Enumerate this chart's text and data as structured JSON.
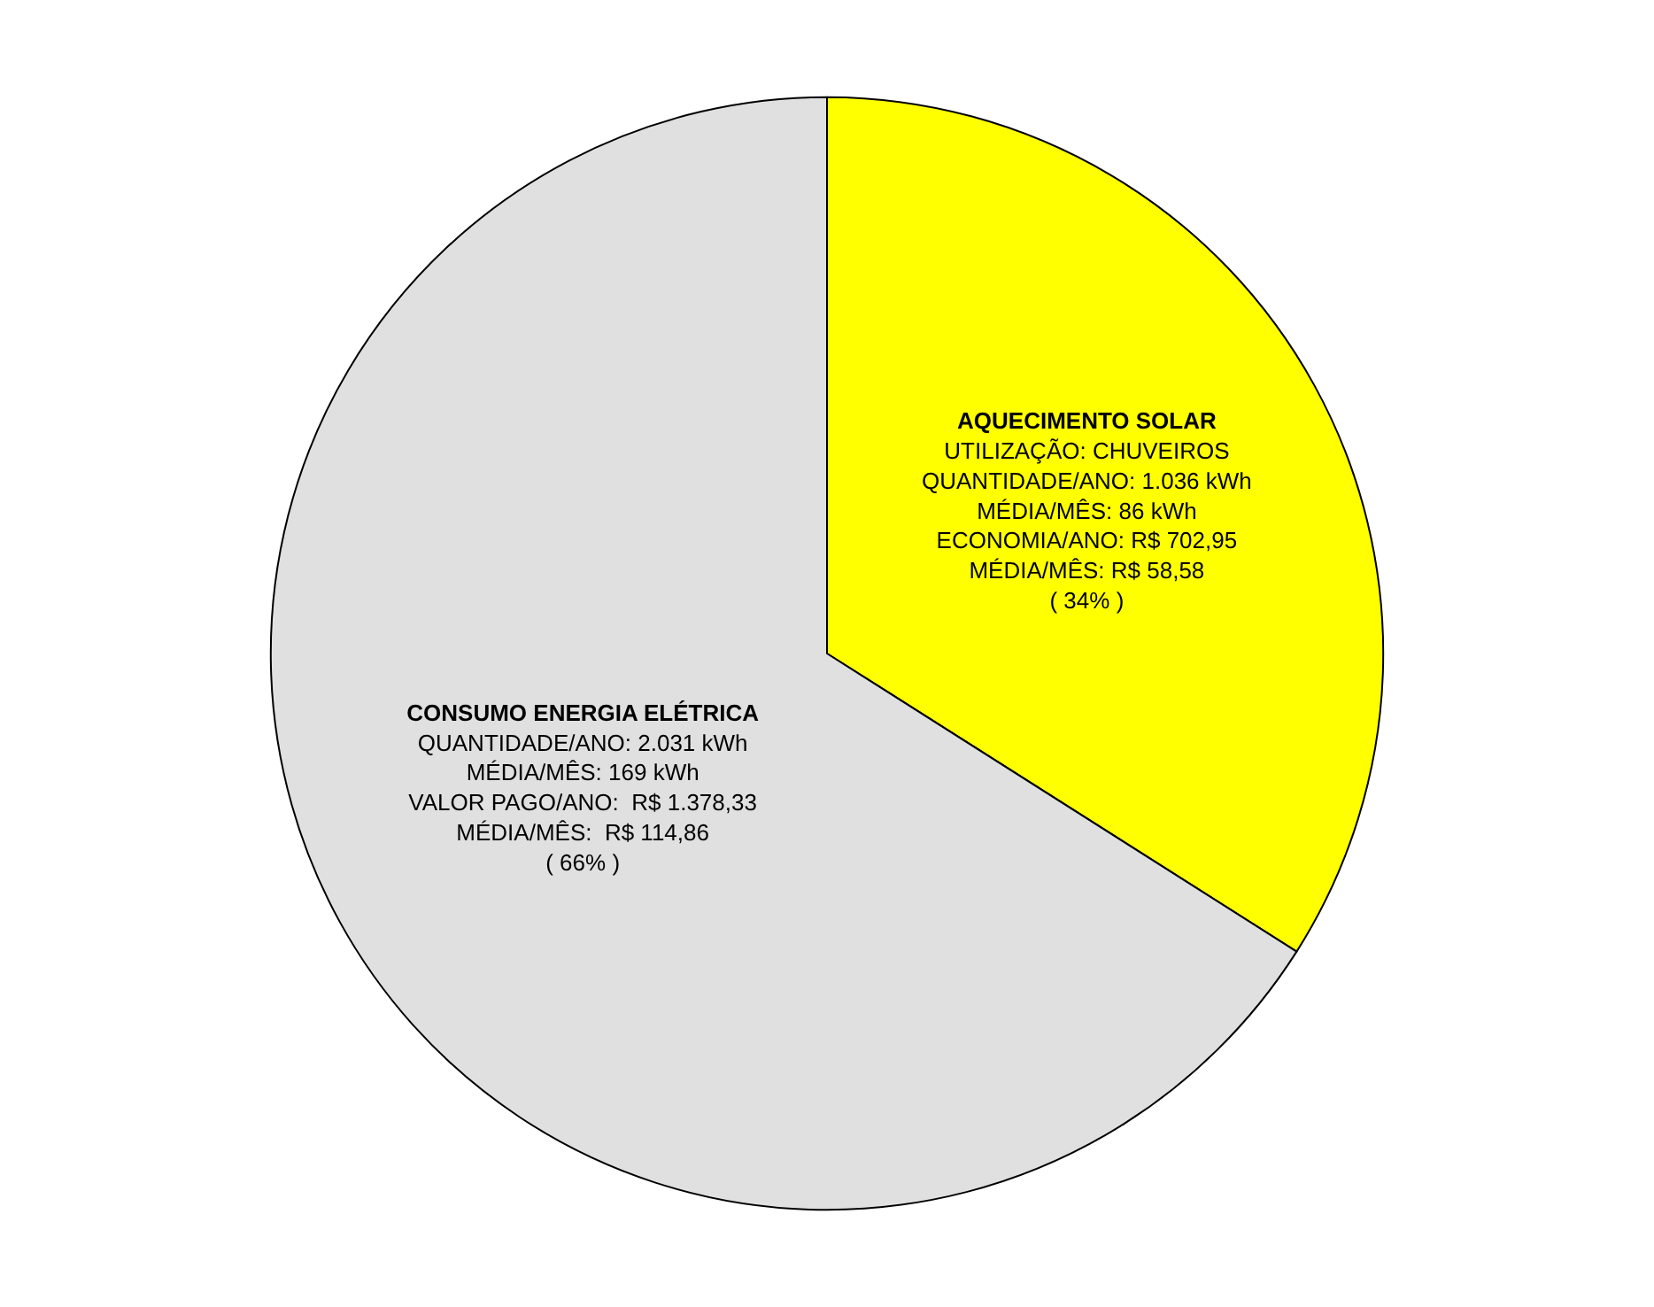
{
  "chart_data": {
    "type": "pie",
    "categories": [
      "AQUECIMENTO SOLAR\nUTILIZAÇÃO: CHUVEIROS\nQUANTIDADE/ANO: 1.036 kWh\nMÉDIA/MÊS: 86 kWh\nECONOMIA/ANO: R$ 702,95\nMÉDIA/MÊS: R$ 58,58",
      "CONSUMO ENERGIA ELÉTRICA\nQUANTIDADE/ANO: 2.031 kWh\nMÉDIA/MÊS: 169 kWh\nVALOR PAGO/ANO:  R$ 1.378,33\nMÉDIA/MÊS:  R$ 114,86"
    ],
    "values": [
      34,
      66
    ],
    "value_labels": [
      "( 34% )",
      "( 66% )"
    ],
    "colors": [
      "#ffff00",
      "#e0e0e0"
    ],
    "legend": false
  }
}
